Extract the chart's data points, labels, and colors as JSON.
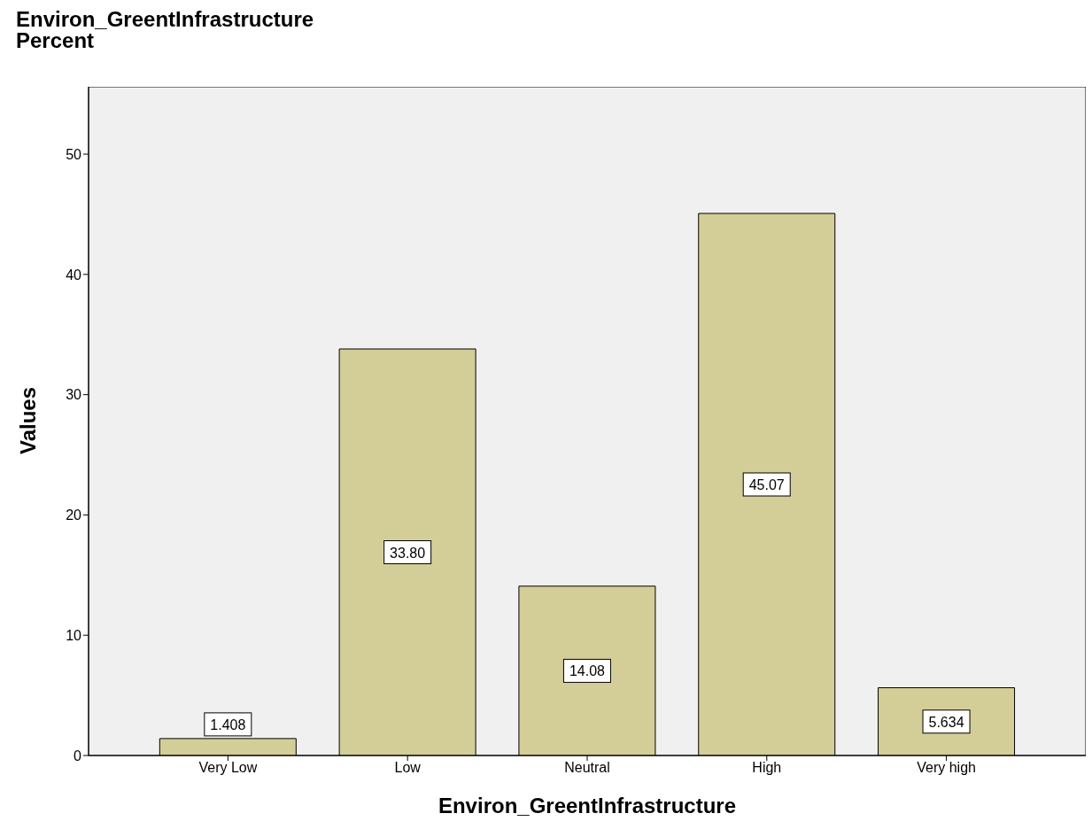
{
  "chart_data": {
    "type": "bar",
    "title": "Environ_GreentInfrastructure",
    "subtitle": "Percent",
    "xlabel": "Environ_GreentInfrastructure",
    "ylabel": "Values",
    "categories": [
      "Very Low",
      "Low",
      "Neutral",
      "High",
      "Very high"
    ],
    "values": [
      1.408,
      33.8,
      14.08,
      45.07,
      5.634
    ],
    "value_labels": [
      "1.408",
      "33.80",
      "14.08",
      "45.07",
      "5.634"
    ],
    "color": "#d3ce97",
    "ylim": [
      0,
      55.6
    ],
    "yticks": [
      0,
      10,
      20,
      30,
      40,
      50
    ],
    "grid": false
  }
}
